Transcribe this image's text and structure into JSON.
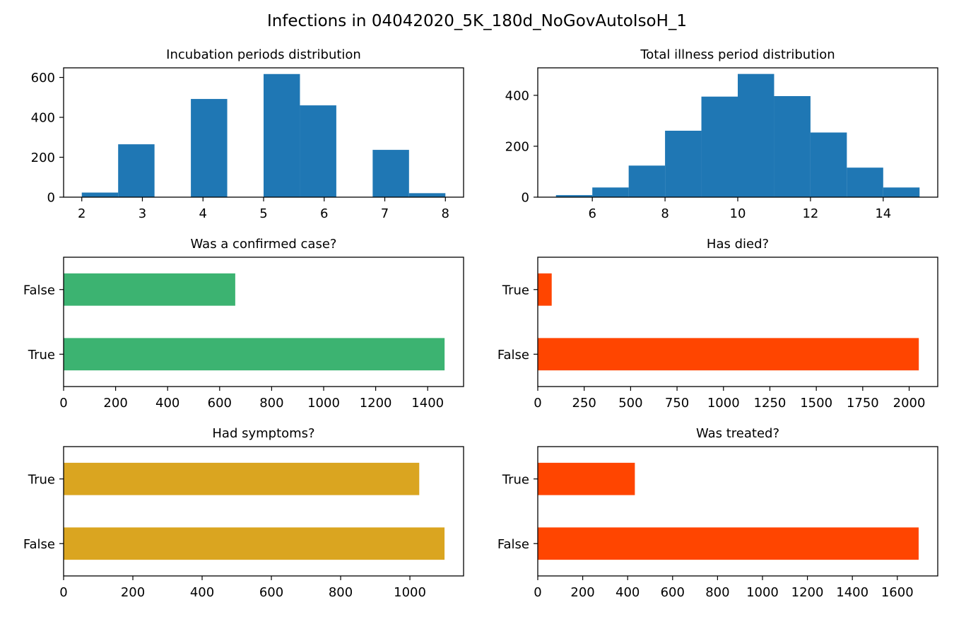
{
  "figure": {
    "title": "Infections in 04042020_5K_180d_NoGovAutoIsoH_1"
  },
  "chart_data": [
    {
      "type": "bar",
      "subtype": "histogram",
      "title": "Incubation periods distribution",
      "color": "#1f77b4",
      "bins": [
        {
          "x0": 2.0,
          "x1": 2.6,
          "count": 23
        },
        {
          "x0": 2.6,
          "x1": 3.2,
          "count": 265
        },
        {
          "x0": 3.2,
          "x1": 3.8,
          "count": 0
        },
        {
          "x0": 3.8,
          "x1": 4.4,
          "count": 492
        },
        {
          "x0": 4.4,
          "x1": 5.0,
          "count": 0
        },
        {
          "x0": 5.0,
          "x1": 5.6,
          "count": 617
        },
        {
          "x0": 5.6,
          "x1": 6.2,
          "count": 460
        },
        {
          "x0": 6.2,
          "x1": 6.8,
          "count": 0
        },
        {
          "x0": 6.8,
          "x1": 7.4,
          "count": 237
        },
        {
          "x0": 7.4,
          "x1": 8.0,
          "count": 20
        }
      ],
      "xlim": [
        1.7,
        8.3
      ],
      "ylim": [
        0,
        648
      ],
      "xticks": [
        2,
        3,
        4,
        5,
        6,
        7,
        8
      ],
      "yticks": [
        0,
        200,
        400,
        600
      ]
    },
    {
      "type": "bar",
      "subtype": "histogram",
      "title": "Total illness period distribution",
      "color": "#1f77b4",
      "bins": [
        {
          "x0": 5,
          "x1": 6,
          "count": 8
        },
        {
          "x0": 6,
          "x1": 7,
          "count": 38
        },
        {
          "x0": 7,
          "x1": 8,
          "count": 124
        },
        {
          "x0": 8,
          "x1": 9,
          "count": 261
        },
        {
          "x0": 9,
          "x1": 10,
          "count": 395
        },
        {
          "x0": 10,
          "x1": 11,
          "count": 484
        },
        {
          "x0": 11,
          "x1": 12,
          "count": 397
        },
        {
          "x0": 12,
          "x1": 13,
          "count": 254
        },
        {
          "x0": 13,
          "x1": 14,
          "count": 116
        },
        {
          "x0": 14,
          "x1": 15,
          "count": 38
        }
      ],
      "xlim": [
        4.5,
        15.5
      ],
      "ylim": [
        0,
        508
      ],
      "xticks": [
        6,
        8,
        10,
        12,
        14
      ],
      "yticks": [
        0,
        200,
        400
      ]
    },
    {
      "type": "bar",
      "orientation": "horizontal",
      "title": "Was a confirmed case?",
      "color": "#3cb371",
      "categories": [
        "True",
        "False"
      ],
      "values": [
        1465,
        660
      ],
      "xlim": [
        0,
        1538
      ],
      "xticks": [
        0,
        200,
        400,
        600,
        800,
        1000,
        1200,
        1400
      ]
    },
    {
      "type": "bar",
      "orientation": "horizontal",
      "title": "Has died?",
      "color": "#ff4500",
      "categories": [
        "False",
        "True"
      ],
      "values": [
        2052,
        75
      ],
      "xlim": [
        0,
        2154
      ],
      "xticks": [
        0,
        250,
        500,
        750,
        1000,
        1250,
        1500,
        1750,
        2000
      ]
    },
    {
      "type": "bar",
      "orientation": "horizontal",
      "title": "Had symptoms?",
      "color": "#daa520",
      "categories": [
        "False",
        "True"
      ],
      "values": [
        1100,
        1027
      ],
      "xlim": [
        0,
        1155
      ],
      "xticks": [
        0,
        200,
        400,
        600,
        800,
        1000
      ]
    },
    {
      "type": "bar",
      "orientation": "horizontal",
      "title": "Was treated?",
      "color": "#ff4500",
      "categories": [
        "False",
        "True"
      ],
      "values": [
        1695,
        432
      ],
      "xlim": [
        0,
        1780
      ],
      "xticks": [
        0,
        200,
        400,
        600,
        800,
        1000,
        1200,
        1400,
        1600
      ]
    }
  ]
}
